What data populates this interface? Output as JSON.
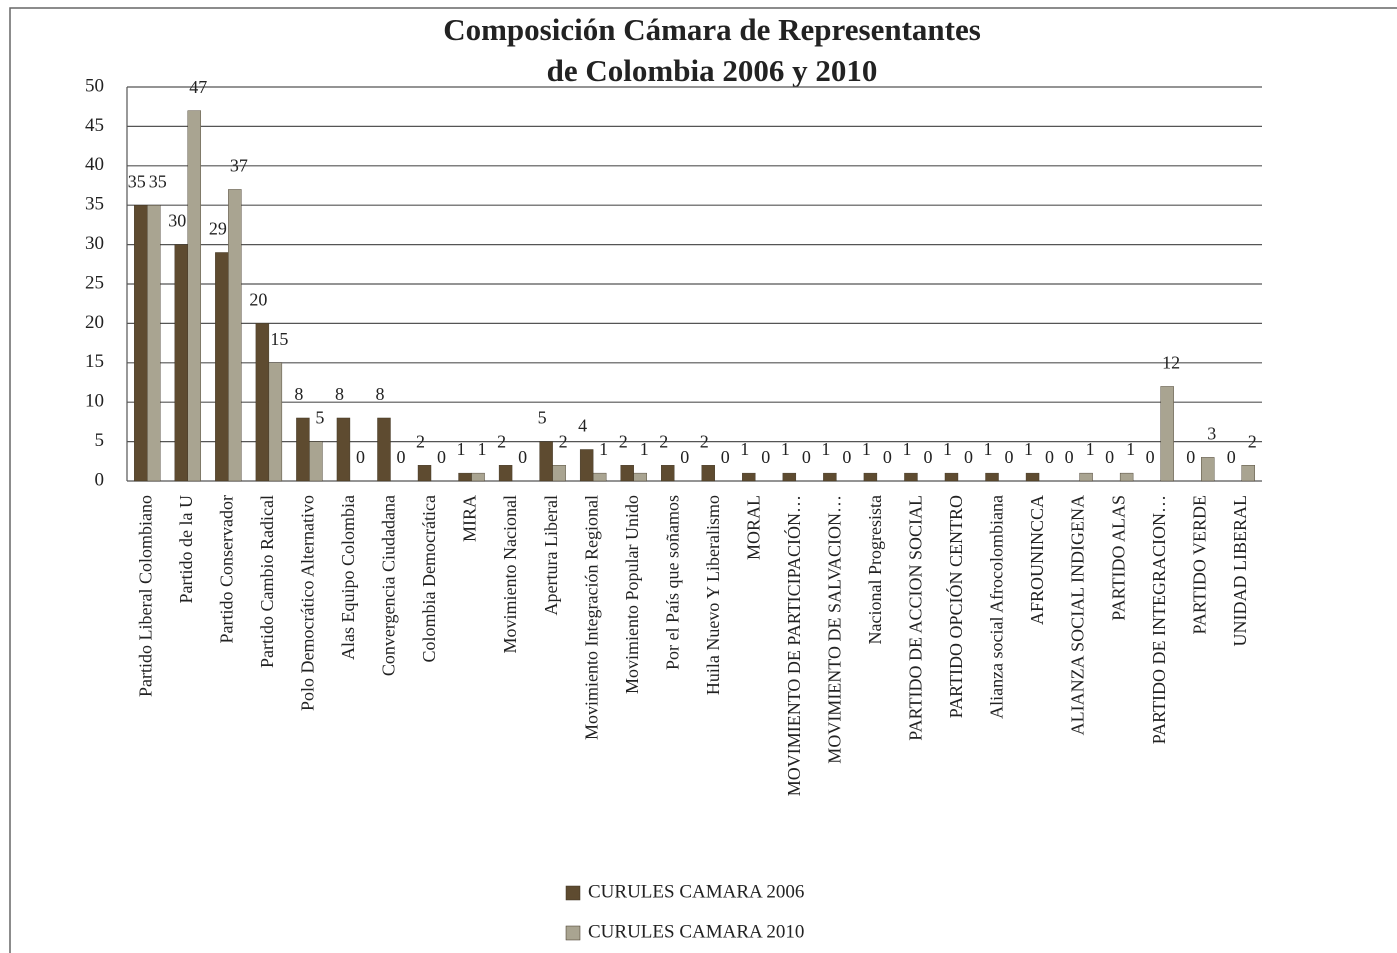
{
  "chart_data": {
    "type": "bar",
    "title": [
      "Composición Cámara de Representantes",
      "de Colombia 2006 y 2010"
    ],
    "categories": [
      "Partido Liberal Colombiano",
      "Partido de la U",
      "Partido Conservador",
      "Partido Cambio Radical",
      "Polo Democrático Alternativo",
      "Alas Equipo Colombia",
      "Convergencia Ciudadana",
      "Colombia Democrática",
      "MIRA",
      "Movimiento Nacional",
      "Apertura Liberal",
      "Movimiento Integración Regional",
      "Movimiento Popular Unido",
      "Por el País que soñamos",
      "Huila  Nuevo Y Liberalismo",
      "MORAL",
      "MOVIMIENTO DE PARTICIPACIÓN…",
      "MOVIMIENTO DE SALVACION…",
      "Nacional  Progresista",
      "PARTIDO DE ACCION SOCIAL",
      "PARTIDO OPCIÓN CENTRO",
      "Alianza social Afrocolombiana",
      "AFROUNINCCA",
      "ALIANZA SOCIAL INDIGENA",
      "PARTIDO ALAS",
      "PARTIDO DE INTEGRACION…",
      "PARTIDO VERDE",
      "UNIDAD LIBERAL"
    ],
    "series": [
      {
        "name": "CURULES CAMARA 2006",
        "color": "#5e4b30",
        "values": [
          35,
          30,
          29,
          20,
          8,
          8,
          8,
          2,
          1,
          2,
          5,
          4,
          2,
          2,
          2,
          1,
          1,
          1,
          1,
          1,
          1,
          1,
          1,
          0,
          0,
          0,
          0,
          0
        ]
      },
      {
        "name": "CURULES CAMARA 2010",
        "color": "#a9a491",
        "values": [
          35,
          47,
          37,
          15,
          5,
          0,
          0,
          0,
          1,
          0,
          2,
          1,
          1,
          0,
          0,
          0,
          0,
          0,
          0,
          0,
          0,
          0,
          0,
          1,
          1,
          12,
          3,
          2
        ]
      }
    ],
    "ylim": [
      0,
      50
    ],
    "yticks": [
      0,
      5,
      10,
      15,
      20,
      25,
      30,
      35,
      40,
      45,
      50
    ],
    "grid": true
  }
}
